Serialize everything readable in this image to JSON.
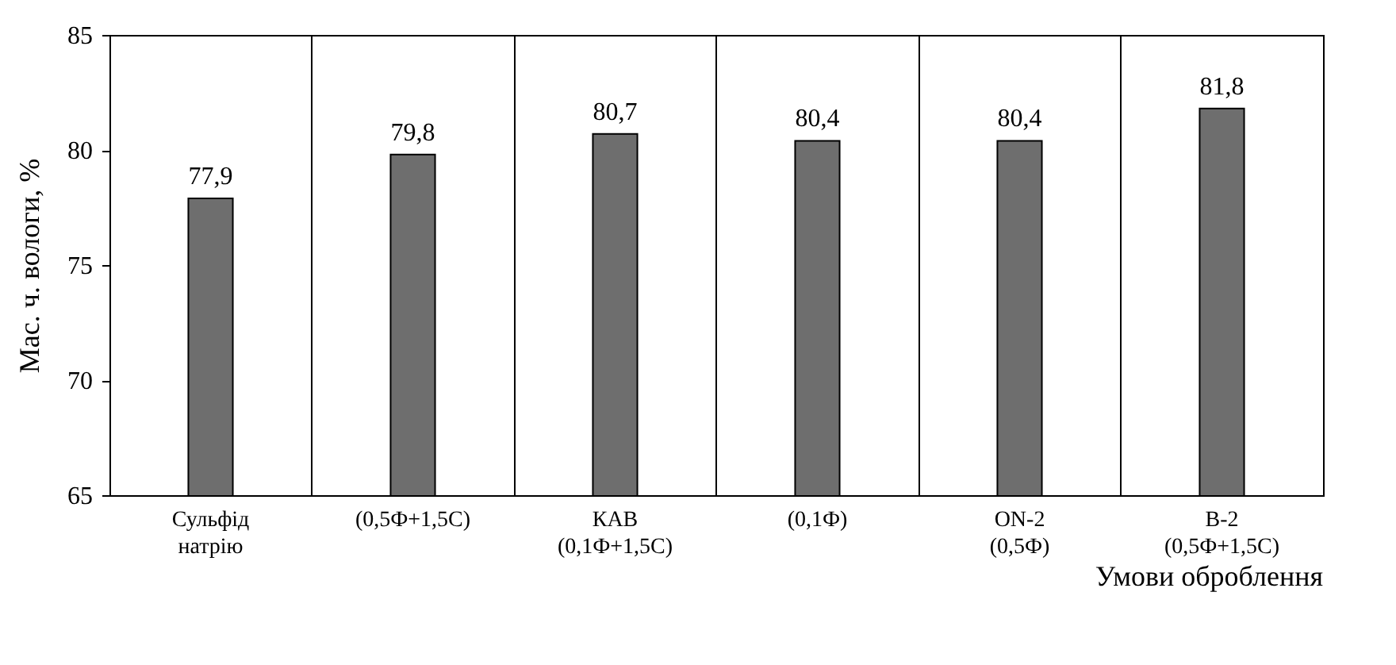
{
  "chart_data": {
    "type": "bar",
    "xlabel": "Умови оброблення",
    "ylabel": "Мас. ч.  вологи, %",
    "categories": [
      "Сульфід\nнатрію",
      "(0,5Ф+1,5С)",
      "КАВ\n(0,1Ф+1,5С)",
      "(0,1Ф)",
      "ON-2\n(0,5Ф)",
      "В-2\n(0,5Ф+1,5С)"
    ],
    "values": [
      77.9,
      79.8,
      80.7,
      80.4,
      80.4,
      81.8
    ],
    "value_labels": [
      "77,9",
      "79,8",
      "80,7",
      "80,4",
      "80,4",
      "81,8"
    ],
    "color": "#6e6e6e",
    "ylim": [
      65,
      85
    ],
    "yticks": [
      65,
      70,
      75,
      80,
      85
    ],
    "grid": "x"
  }
}
